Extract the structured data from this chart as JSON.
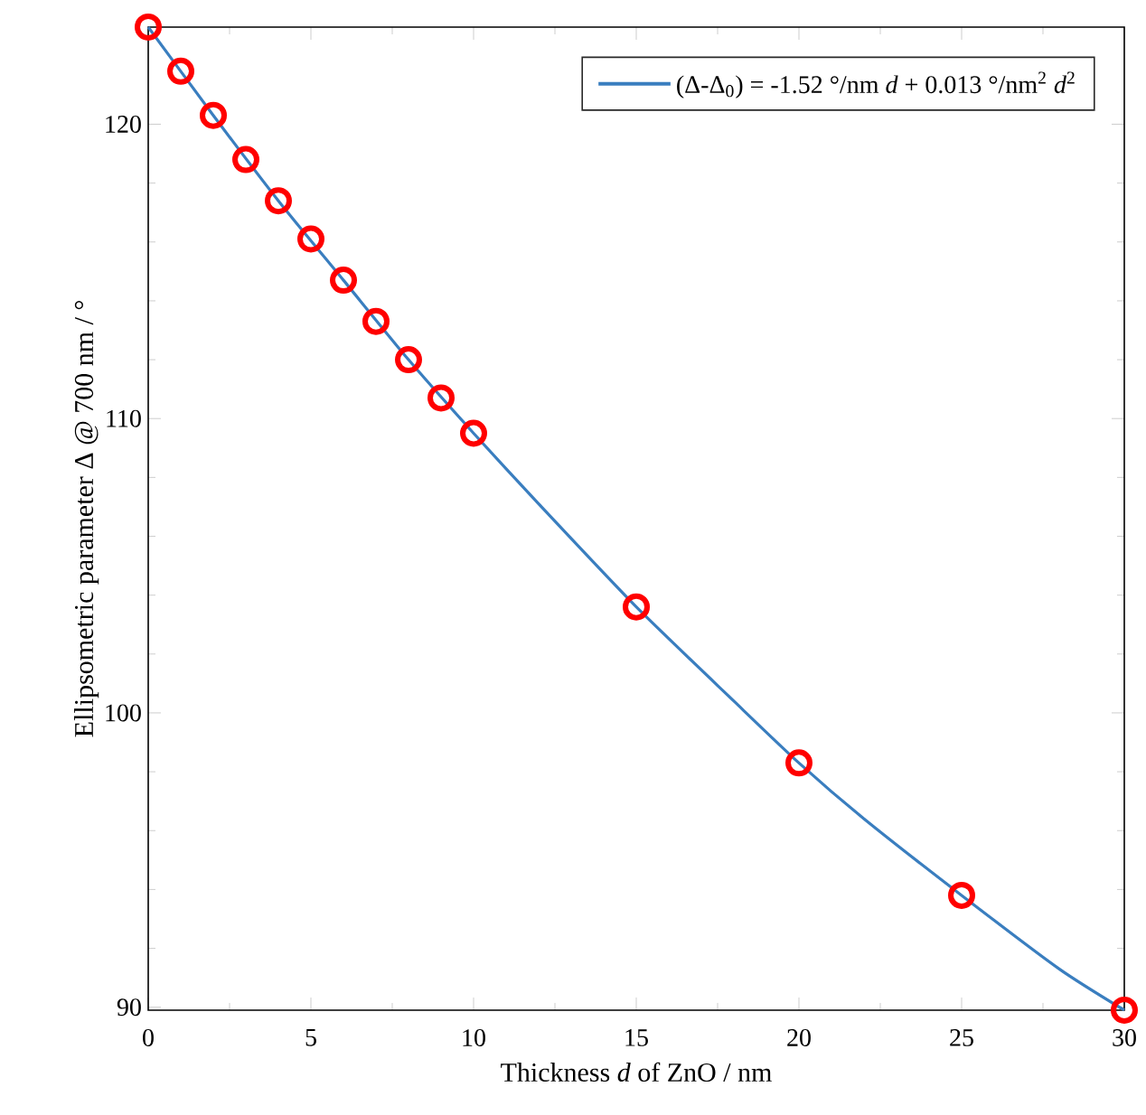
{
  "chart_data": {
    "type": "scatter",
    "xlabel": "Thickness *d* of ZnO / nm",
    "ylabel": "Ellipsometric parameter Δ @ 700 nm / °",
    "xlim": [
      0,
      30
    ],
    "ylim": [
      89.9,
      123.3
    ],
    "xticks": [
      0,
      5,
      10,
      15,
      20,
      25,
      30
    ],
    "yticks": [
      90,
      100,
      110,
      120
    ],
    "grid": false,
    "legend": "top right",
    "marker": "circle",
    "series": [
      {
        "color": "#ff0000",
        "x": [
          0,
          1,
          2,
          3,
          4,
          5,
          6,
          7,
          8,
          9,
          10,
          15,
          20,
          25,
          30
        ],
        "values": [
          123.3,
          121.8,
          120.3,
          118.8,
          117.4,
          116.1,
          114.7,
          113.3,
          112.0,
          110.7,
          109.5,
          103.6,
          98.3,
          93.8,
          89.9
        ]
      },
      {
        "type": "line",
        "name": "(Δ-Δ$_{0}$) = -1.52 °/nm *d* + 0.013 °/nm$^{2}$ *d*$^{2}$",
        "color": "#3a7ebf",
        "marker": "none",
        "line_style": "solid",
        "x": [
          0,
          2,
          4,
          6,
          8,
          10,
          12,
          15,
          18,
          20,
          22,
          25,
          28,
          30
        ],
        "values": [
          123.3,
          120.3,
          117.4,
          114.7,
          112.0,
          109.5,
          107.1,
          103.6,
          100.4,
          98.3,
          96.4,
          93.8,
          91.3,
          89.9
        ]
      }
    ]
  }
}
